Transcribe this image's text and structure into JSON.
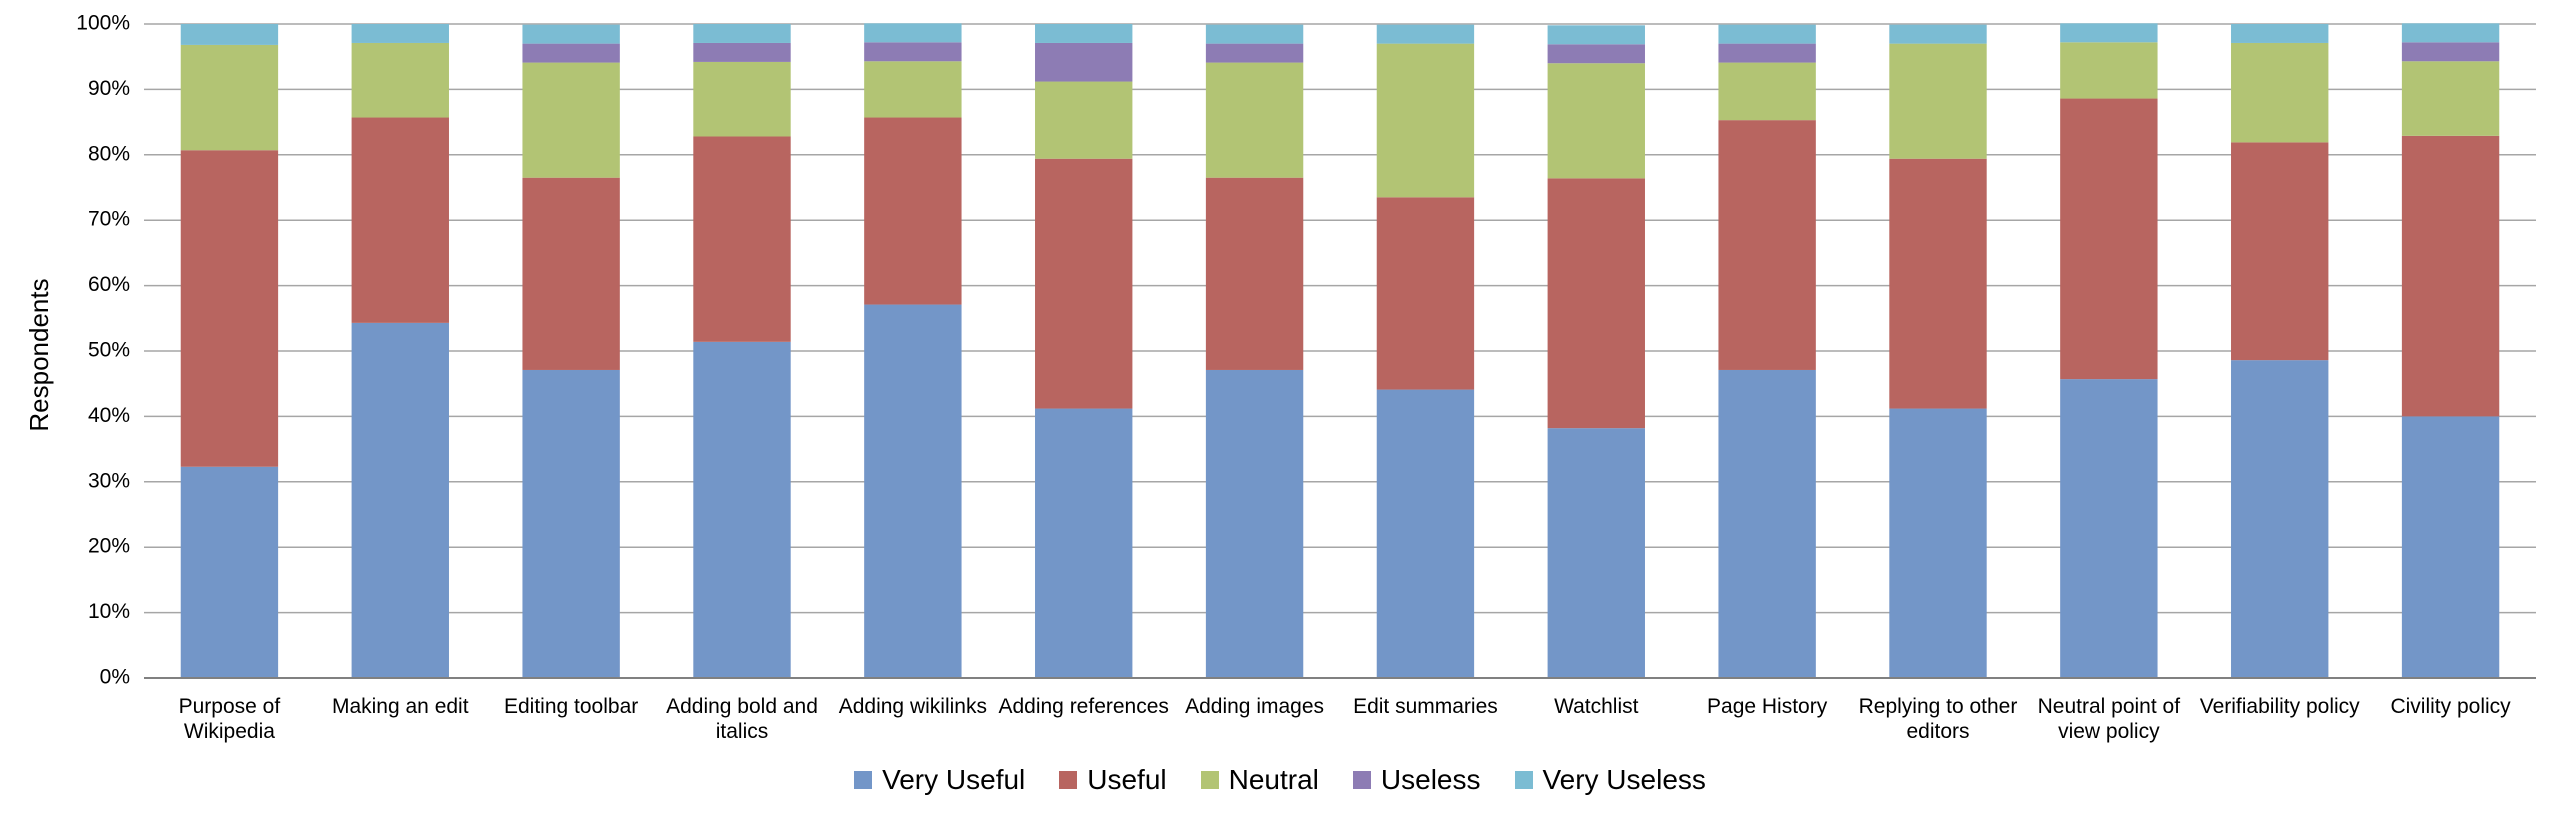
{
  "chart_data": {
    "type": "stacked_bar",
    "y_label": "Respondents",
    "categories": [
      "Purpose of Wikipedia",
      "Making an edit",
      "Editing toolbar",
      "Adding bold and italics",
      "Adding wikilinks",
      "Adding references",
      "Adding images",
      "Edit summaries",
      "Watchlist",
      "Page History",
      "Replying to other editors",
      "Neutral point of view policy",
      "Verifiability policy",
      "Civility policy"
    ],
    "series": [
      {
        "name": "Very Useful",
        "color": "#7396c8",
        "values": [
          32.3,
          54.3,
          47.1,
          51.4,
          57.1,
          41.2,
          47.1,
          44.1,
          38.2,
          47.1,
          41.2,
          45.7,
          48.6,
          40.0
        ]
      },
      {
        "name": "Useful",
        "color": "#b86560",
        "values": [
          48.4,
          31.4,
          29.4,
          31.4,
          28.6,
          38.2,
          29.4,
          29.4,
          38.2,
          38.2,
          38.2,
          42.9,
          33.3,
          42.9
        ]
      },
      {
        "name": "Neutral",
        "color": "#b2c474",
        "values": [
          16.1,
          11.4,
          17.6,
          11.4,
          8.6,
          11.8,
          17.6,
          23.5,
          17.6,
          8.8,
          17.6,
          8.6,
          15.2,
          11.4
        ]
      },
      {
        "name": "Useless",
        "color": "#8d7cb4",
        "values": [
          0,
          0,
          2.9,
          2.9,
          2.9,
          5.9,
          2.9,
          0,
          2.9,
          2.9,
          0,
          0,
          0,
          2.9
        ]
      },
      {
        "name": "Very Useless",
        "color": "#7bbcd3",
        "values": [
          3.2,
          2.9,
          2.9,
          2.9,
          2.9,
          2.9,
          2.9,
          2.9,
          2.9,
          2.9,
          2.9,
          2.9,
          2.9,
          2.9
        ]
      }
    ],
    "ylim": [
      0,
      100
    ],
    "yticks": [
      {
        "value": 0,
        "label": "0%"
      },
      {
        "value": 10,
        "label": "10%"
      },
      {
        "value": 20,
        "label": "20%"
      },
      {
        "value": 30,
        "label": "30%"
      },
      {
        "value": 40,
        "label": "40%"
      },
      {
        "value": 50,
        "label": "50%"
      },
      {
        "value": 60,
        "label": "60%"
      },
      {
        "value": 70,
        "label": "70%"
      },
      {
        "value": 80,
        "label": "80%"
      },
      {
        "value": 90,
        "label": "90%"
      },
      {
        "value": 100,
        "label": "100%"
      }
    ],
    "grid": true,
    "legend": "bottom"
  }
}
